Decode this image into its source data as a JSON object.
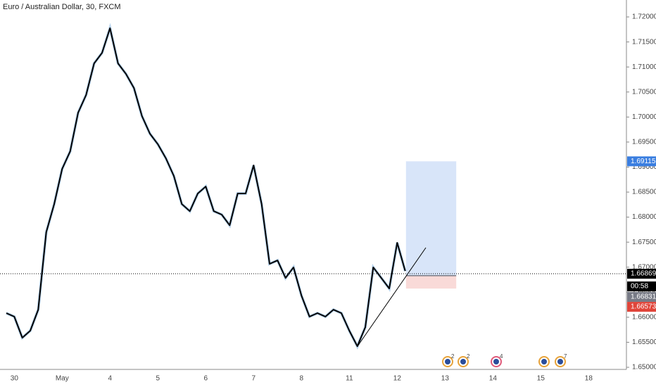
{
  "chart_data": {
    "type": "line",
    "title": "Euro / Australian Dollar, 30, FXCM",
    "categories": [
      null,
      "30",
      null,
      null,
      null,
      null,
      null,
      "May",
      null,
      null,
      null,
      null,
      null,
      "4",
      null,
      null,
      null,
      null,
      null,
      "5",
      null,
      null,
      null,
      null,
      null,
      "6",
      null,
      null,
      null,
      null,
      null,
      "7",
      null,
      null,
      null,
      null,
      null,
      "8",
      null,
      null,
      null,
      null,
      null,
      "11",
      null,
      null,
      null,
      null,
      null,
      "12",
      null,
      null,
      null,
      null,
      null,
      "13",
      null,
      null,
      null,
      null,
      null,
      "14",
      null,
      null,
      null,
      null,
      null,
      "15",
      null,
      null,
      null,
      null,
      null,
      "18",
      null,
      null,
      null,
      null,
      null
    ],
    "series": [
      {
        "name": "EURAUD",
        "color": "#000000",
        "values": [
          1.66082,
          1.66012,
          1.6559,
          1.65731,
          1.66152,
          1.67699,
          1.68261,
          1.68964,
          1.69315,
          1.70088,
          1.7044,
          1.71072,
          1.71283,
          1.71775,
          1.71072,
          1.70861,
          1.7058,
          1.70018,
          1.69667,
          1.69456,
          1.69175,
          1.68823,
          1.68261,
          1.6812,
          1.68472,
          1.68612,
          1.6812,
          1.6805,
          1.67839,
          1.68472,
          1.68472,
          1.69034,
          1.68261,
          1.67066,
          1.67136,
          1.66785,
          1.66996,
          1.66433,
          1.66012,
          1.66082,
          1.66012,
          1.66152,
          1.66082,
          1.65731,
          1.65421,
          1.65801,
          1.66996,
          1.66785,
          1.66574,
          1.67488,
          1.66925,
          null,
          null,
          null,
          null,
          null,
          null,
          null,
          null,
          null,
          null,
          null,
          null,
          null,
          null,
          null,
          null,
          null,
          null,
          null,
          null,
          null,
          null,
          null,
          null,
          null,
          null,
          null,
          null
        ]
      }
    ],
    "ylim": [
      1.64958,
      1.72338
    ],
    "yticks": [
      {
        "value": 1.65,
        "label": "1.65000"
      },
      {
        "value": 1.655,
        "label": "1.65500"
      },
      {
        "value": 1.66,
        "label": "1.66000"
      },
      {
        "value": 1.665,
        "label": "1.66500"
      },
      {
        "value": 1.67,
        "label": "1.67000"
      },
      {
        "value": 1.675,
        "label": "1.67500"
      },
      {
        "value": 1.68,
        "label": "1.68000"
      },
      {
        "value": 1.685,
        "label": "1.68500"
      },
      {
        "value": 1.69,
        "label": "1.69000"
      },
      {
        "value": 1.695,
        "label": "1.69500"
      },
      {
        "value": 1.7,
        "label": "1.70000"
      },
      {
        "value": 1.705,
        "label": "1.70500"
      },
      {
        "value": 1.71,
        "label": "1.71000"
      },
      {
        "value": 1.715,
        "label": "1.71500"
      },
      {
        "value": 1.72,
        "label": "1.72000"
      }
    ],
    "last_price": 1.66869,
    "countdown": "00:58",
    "position": {
      "target": 1.69115,
      "entry": 1.66831,
      "stop": 1.66573,
      "target_color": "#3a7ee0",
      "entry_color": "#787b86",
      "stop_color": "#e0453a"
    },
    "events": [
      "2",
      "2",
      "4",
      "7"
    ]
  }
}
